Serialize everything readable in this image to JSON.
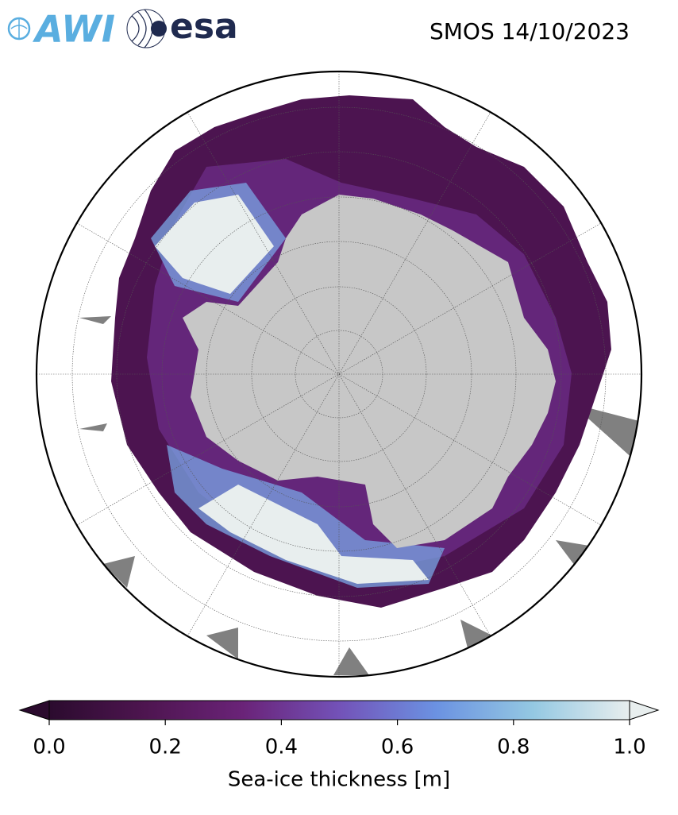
{
  "logos": [
    "AWI",
    "esa"
  ],
  "title": "SMOS 14/10/2023",
  "colorbar": {
    "label": "Sea-ice thickness [m]",
    "lim": [
      0,
      1
    ],
    "ticks": [
      {
        "value": 0,
        "label": "0.0"
      },
      0.2,
      0.4,
      0.6,
      0.8,
      {
        "value": 1,
        "label": "1.0"
      }
    ],
    "colors": [
      "#2b0b2e",
      "#4e1550",
      "#6a2378",
      "#7352b8",
      "#6b92e2",
      "#94c8e2",
      "#e8eeee"
    ],
    "extend": "both"
  }
}
